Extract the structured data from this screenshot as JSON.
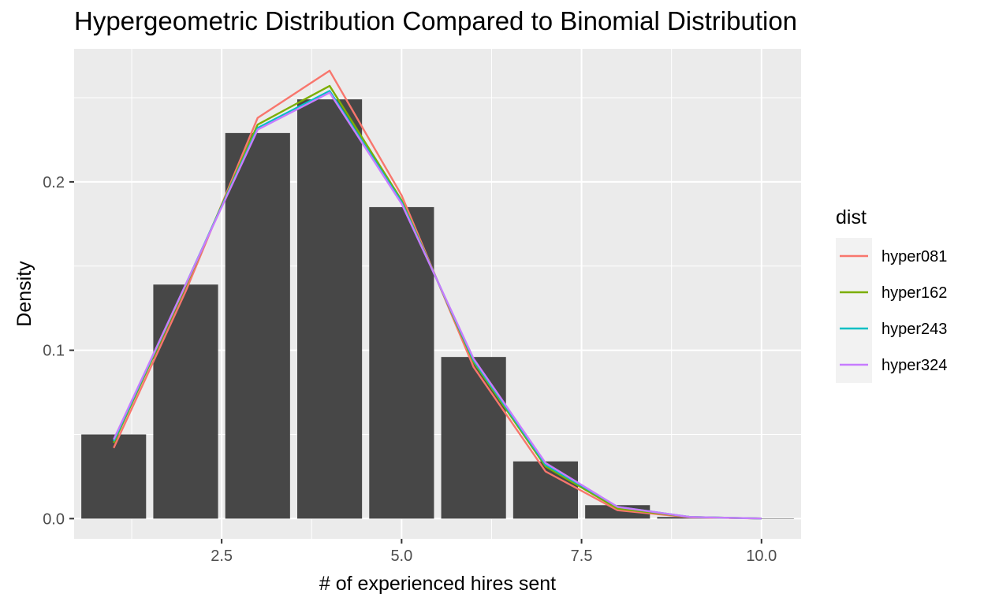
{
  "chart_data": {
    "type": "bar",
    "title": "Hypergeometric Distribution Compared to Binomial Distribution",
    "xlabel": "# of experienced hires sent",
    "ylabel": "Density",
    "xlim": [
      0.45,
      10.55
    ],
    "ylim": [
      -0.012,
      0.279
    ],
    "x_ticks": [
      2.5,
      5.0,
      7.5,
      10.0
    ],
    "x_tick_labels": [
      "2.5",
      "5.0",
      "7.5",
      "10.0"
    ],
    "y_ticks": [
      0.0,
      0.1,
      0.2
    ],
    "y_tick_labels": [
      "0.0",
      "0.1",
      "0.2"
    ],
    "grid": true,
    "bars": {
      "x": [
        1,
        2,
        3,
        4,
        5,
        6,
        7,
        8,
        9,
        10
      ],
      "values": [
        0.05,
        0.139,
        0.229,
        0.249,
        0.185,
        0.096,
        0.034,
        0.008,
        0.001,
        0.0001
      ],
      "color": "#474747"
    },
    "legend": {
      "title": "dist",
      "position": "right"
    },
    "series": [
      {
        "name": "hyper081",
        "color": "#F8766D",
        "x": [
          1,
          2,
          3,
          4,
          5,
          6,
          7,
          8,
          9,
          10
        ],
        "values": [
          0.042,
          0.135,
          0.238,
          0.266,
          0.192,
          0.09,
          0.028,
          0.005,
          0.0008,
          0.0001
        ]
      },
      {
        "name": "hyper162",
        "color": "#7CAE00",
        "x": [
          1,
          2,
          3,
          4,
          5,
          6,
          7,
          8,
          9,
          10
        ],
        "values": [
          0.045,
          0.138,
          0.234,
          0.257,
          0.189,
          0.093,
          0.031,
          0.006,
          0.001,
          0.0001
        ]
      },
      {
        "name": "hyper243",
        "color": "#00BFC4",
        "x": [
          1,
          2,
          3,
          4,
          5,
          6,
          7,
          8,
          9,
          10
        ],
        "values": [
          0.046,
          0.139,
          0.232,
          0.254,
          0.188,
          0.094,
          0.032,
          0.007,
          0.001,
          0.0001
        ]
      },
      {
        "name": "hyper324",
        "color": "#C77CFF",
        "x": [
          1,
          2,
          3,
          4,
          5,
          6,
          7,
          8,
          9,
          10
        ],
        "values": [
          0.047,
          0.139,
          0.231,
          0.253,
          0.187,
          0.095,
          0.033,
          0.007,
          0.001,
          0.0001
        ]
      }
    ]
  }
}
